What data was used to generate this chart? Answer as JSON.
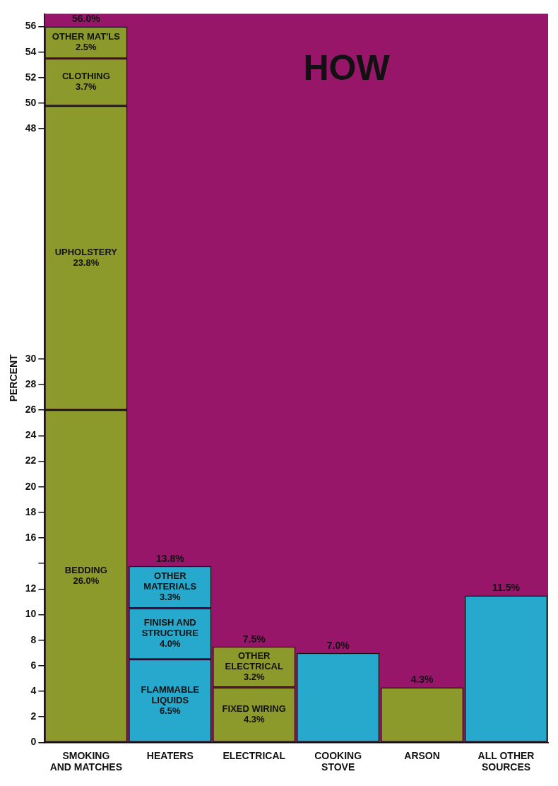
{
  "chart_data": {
    "type": "bar",
    "title": "HOW",
    "ylabel": "PERCENT",
    "stacked": true,
    "categories": [
      "SMOKING AND MATCHES",
      "HEATERS",
      "ELECTRICAL",
      "COOKING STOVE",
      "ARSON",
      "ALL OTHER SOURCES"
    ],
    "series": [
      {
        "colors": [
          "#8c9a2c",
          "#26a9cc",
          "#8c9a2c",
          "#26a9cc",
          "#8c9a2c",
          "#26a9cc"
        ],
        "values": [
          26.0,
          6.5,
          4.3,
          7.0,
          4.3,
          11.5
        ],
        "value_labels": [
          "BEDDING 26.0%",
          "FLAMMABLE LIQUIDS 6.5%",
          "FIXED WIRING 4.3%",
          null,
          null,
          null
        ]
      },
      {
        "colors": [
          "#8c9a2c",
          "#26a9cc",
          "#8c9a2c",
          "#26a9cc",
          "#8c9a2c",
          "#26a9cc"
        ],
        "values": [
          23.8,
          4.0,
          3.2,
          null,
          null,
          null
        ],
        "value_labels": [
          "UPHOLSTERY 23.8%",
          "FINISH AND STRUCTURE 4.0%",
          "OTHER ELECTRICAL 3.2%",
          null,
          null,
          null
        ]
      },
      {
        "colors": [
          "#8c9a2c",
          "#26a9cc",
          "#8c9a2c",
          "#26a9cc",
          "#8c9a2c",
          "#26a9cc"
        ],
        "values": [
          3.7,
          3.3,
          null,
          null,
          null,
          null
        ],
        "value_labels": [
          "CLOTHING 3.7%",
          "OTHER MATERIALS 3.3%",
          null,
          null,
          null,
          null
        ]
      },
      {
        "colors": [
          "#8c9a2c",
          "#26a9cc",
          "#8c9a2c",
          "#26a9cc",
          "#8c9a2c",
          "#26a9cc"
        ],
        "values": [
          2.5,
          null,
          null,
          null,
          null,
          null
        ],
        "value_labels": [
          "OTHER MAT'LS 2.5%",
          null,
          null,
          null,
          null,
          null
        ]
      }
    ],
    "totals": [
      "56.0%",
      "13.8%",
      "7.5%",
      "7.0%",
      "4.3%",
      "11.5%"
    ],
    "ylim": [
      0,
      57
    ],
    "yticks": [
      0,
      2,
      4,
      6,
      8,
      10,
      12,
      {
        "value": 14,
        "label": null
      },
      16,
      18,
      20,
      22,
      24,
      26,
      28,
      30,
      48,
      50,
      52,
      54,
      56
    ],
    "legend": false
  }
}
